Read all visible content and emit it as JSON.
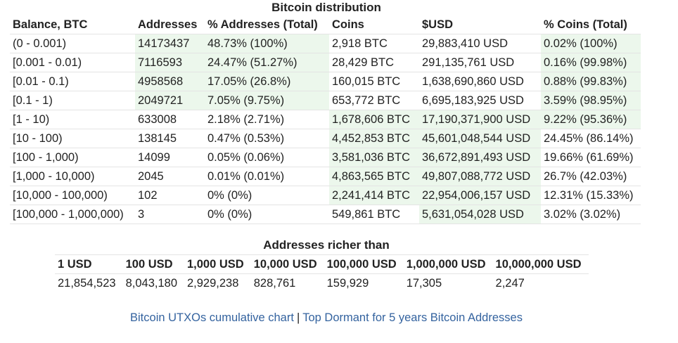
{
  "distribution": {
    "title": "Bitcoin distribution",
    "headers": [
      "Balance, BTC",
      "Addresses",
      "% Addresses (Total)",
      "Coins",
      "$USD",
      "% Coins (Total)"
    ],
    "rows": [
      [
        "(0 - 0.001)",
        "14173437",
        "48.73% (100%)",
        "2,918 BTC",
        "29,883,410 USD",
        "0.02% (100%)"
      ],
      [
        "[0.001 - 0.01)",
        "7116593",
        "24.47% (51.27%)",
        "28,429 BTC",
        "291,135,761 USD",
        "0.16% (99.98%)"
      ],
      [
        "[0.01 - 0.1)",
        "4958568",
        "17.05% (26.8%)",
        "160,015 BTC",
        "1,638,690,860 USD",
        "0.88% (99.83%)"
      ],
      [
        "[0.1 - 1)",
        "2049721",
        "7.05% (9.75%)",
        "653,772 BTC",
        "6,695,183,925 USD",
        "3.59% (98.95%)"
      ],
      [
        "[1 - 10)",
        "633008",
        "2.18% (2.71%)",
        "1,678,606 BTC",
        "17,190,371,900 USD",
        "9.22% (95.36%)"
      ],
      [
        "[10 - 100)",
        "138145",
        "0.47% (0.53%)",
        "4,452,853 BTC",
        "45,601,048,544 USD",
        "24.45% (86.14%)"
      ],
      [
        "[100 - 1,000)",
        "14099",
        "0.05% (0.06%)",
        "3,581,036 BTC",
        "36,672,891,493 USD",
        "19.66% (61.69%)"
      ],
      [
        "[1,000 - 10,000)",
        "2045",
        "0.01% (0.01%)",
        "4,863,565 BTC",
        "49,807,088,772 USD",
        "26.7% (42.03%)"
      ],
      [
        "[10,000 - 100,000)",
        "102",
        "0% (0%)",
        "2,241,414 BTC",
        "22,954,006,157 USD",
        "12.31% (15.33%)"
      ],
      [
        "[100,000 - 1,000,000)",
        "3",
        "0% (0%)",
        "549,861 BTC",
        "5,631,054,028 USD",
        "3.02% (3.02%)"
      ]
    ],
    "highlight": [
      [
        false,
        true,
        true,
        false,
        false,
        true
      ],
      [
        false,
        true,
        true,
        false,
        false,
        true
      ],
      [
        false,
        true,
        true,
        false,
        false,
        true
      ],
      [
        false,
        true,
        true,
        false,
        false,
        true
      ],
      [
        false,
        false,
        false,
        true,
        true,
        true
      ],
      [
        false,
        false,
        false,
        true,
        true,
        false
      ],
      [
        false,
        false,
        false,
        true,
        true,
        false
      ],
      [
        false,
        false,
        false,
        true,
        true,
        false
      ],
      [
        false,
        false,
        false,
        true,
        true,
        false
      ],
      [
        false,
        false,
        false,
        false,
        true,
        false
      ]
    ],
    "highlight_color": "#ecf7ec"
  },
  "richer": {
    "title": "Addresses richer than",
    "headers": [
      "1 USD",
      "100 USD",
      "1,000 USD",
      "10,000 USD",
      "100,000 USD",
      "1,000,000 USD",
      "10,000,000 USD"
    ],
    "values": [
      "21,854,523",
      "8,043,180",
      "2,929,238",
      "828,761",
      "159,929",
      "17,305",
      "2,247"
    ]
  },
  "footer": {
    "link1": "Bitcoin UTXOs cumulative chart",
    "separator": "|",
    "link2": "Top Dormant for 5 years Bitcoin Addresses",
    "link_color": "#34639f"
  }
}
